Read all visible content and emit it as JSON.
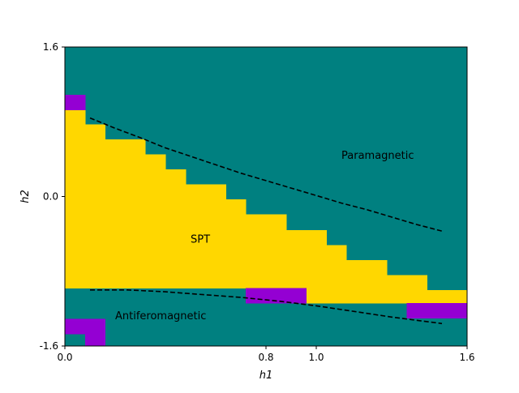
{
  "chart_data": {
    "type": "heatmap",
    "title": "",
    "xlabel": "h1",
    "ylabel": "h2",
    "xlim": [
      0.0,
      1.6
    ],
    "ylim": [
      -1.6,
      1.6
    ],
    "xticks": [
      {
        "value": 0.0,
        "label": "0.0"
      },
      {
        "value": 0.8,
        "label": "0.8"
      },
      {
        "value": 1.0,
        "label": "1.0"
      },
      {
        "value": 1.6,
        "label": "1.6"
      }
    ],
    "yticks": [
      {
        "value": -1.6,
        "label": "-1.6"
      },
      {
        "value": 0.0,
        "label": "0.0"
      },
      {
        "value": 1.6,
        "label": "1.6"
      }
    ],
    "grid": false,
    "colors": {
      "background": "#008080",
      "spt": "#ffd700",
      "other": "#9400d3"
    },
    "phase_regions": {
      "spt": [
        {
          "x": [
            0.0,
            0.08
          ],
          "y": [
            -0.98,
            0.93
          ]
        },
        {
          "x": [
            0.08,
            0.16
          ],
          "y": [
            -0.98,
            0.77
          ]
        },
        {
          "x": [
            0.16,
            0.32
          ],
          "y": [
            -0.98,
            0.61
          ]
        },
        {
          "x": [
            0.32,
            0.4
          ],
          "y": [
            -0.98,
            0.45
          ]
        },
        {
          "x": [
            0.4,
            0.48
          ],
          "y": [
            -0.98,
            0.29
          ]
        },
        {
          "x": [
            0.48,
            0.64
          ],
          "y": [
            -0.98,
            0.13
          ]
        },
        {
          "x": [
            0.64,
            0.72
          ],
          "y": [
            -0.98,
            -0.03
          ]
        },
        {
          "x": [
            0.72,
            0.88
          ],
          "y": [
            -0.98,
            -0.19
          ]
        },
        {
          "x": [
            0.88,
            0.96
          ],
          "y": [
            -0.98,
            -0.36
          ]
        },
        {
          "x": [
            0.96,
            1.04
          ],
          "y": [
            -1.14,
            -0.36
          ]
        },
        {
          "x": [
            1.04,
            1.12
          ],
          "y": [
            -1.14,
            -0.52
          ]
        },
        {
          "x": [
            1.12,
            1.28
          ],
          "y": [
            -1.14,
            -0.68
          ]
        },
        {
          "x": [
            1.28,
            1.44
          ],
          "y": [
            -1.14,
            -0.84
          ]
        },
        {
          "x": [
            1.44,
            1.6
          ],
          "y": [
            -1.14,
            -1.0
          ]
        }
      ],
      "other": [
        {
          "x": [
            0.0,
            0.08
          ],
          "y": [
            0.93,
            1.09
          ]
        },
        {
          "x": [
            0.72,
            0.96
          ],
          "y": [
            -1.14,
            -0.98
          ]
        },
        {
          "x": [
            1.36,
            1.6
          ],
          "y": [
            -1.3,
            -1.14
          ]
        },
        {
          "x": [
            0.0,
            0.16
          ],
          "y": [
            -1.47,
            -1.31
          ]
        },
        {
          "x": [
            0.08,
            0.16
          ],
          "y": [
            -1.6,
            -1.47
          ]
        }
      ]
    },
    "boundaries": [
      {
        "style": "dashed",
        "color": "#000000",
        "x": [
          0.1,
          0.2,
          0.3,
          0.4,
          0.5,
          0.6,
          0.7,
          0.8,
          0.9,
          1.0,
          1.1,
          1.2,
          1.3,
          1.4,
          1.5
        ],
        "y": [
          0.84,
          0.73,
          0.63,
          0.52,
          0.43,
          0.34,
          0.25,
          0.17,
          0.09,
          0.01,
          -0.07,
          -0.14,
          -0.22,
          -0.3,
          -0.37
        ]
      },
      {
        "style": "dashed",
        "color": "#000000",
        "x": [
          0.1,
          0.25,
          0.4,
          0.55,
          0.7,
          0.85,
          1.0,
          1.15,
          1.3,
          1.5
        ],
        "y": [
          -1.0,
          -1.0,
          -1.02,
          -1.05,
          -1.08,
          -1.12,
          -1.17,
          -1.23,
          -1.29,
          -1.36
        ]
      }
    ],
    "annotations": [
      {
        "text": "Paramagnetic",
        "x": 1.1,
        "y": 0.44,
        "anchor": "start"
      },
      {
        "text": "SPT",
        "x": 0.5,
        "y": -0.46,
        "anchor": "start"
      },
      {
        "text": "Antiferomagnetic",
        "x": 0.2,
        "y": -1.28,
        "anchor": "start"
      }
    ]
  }
}
